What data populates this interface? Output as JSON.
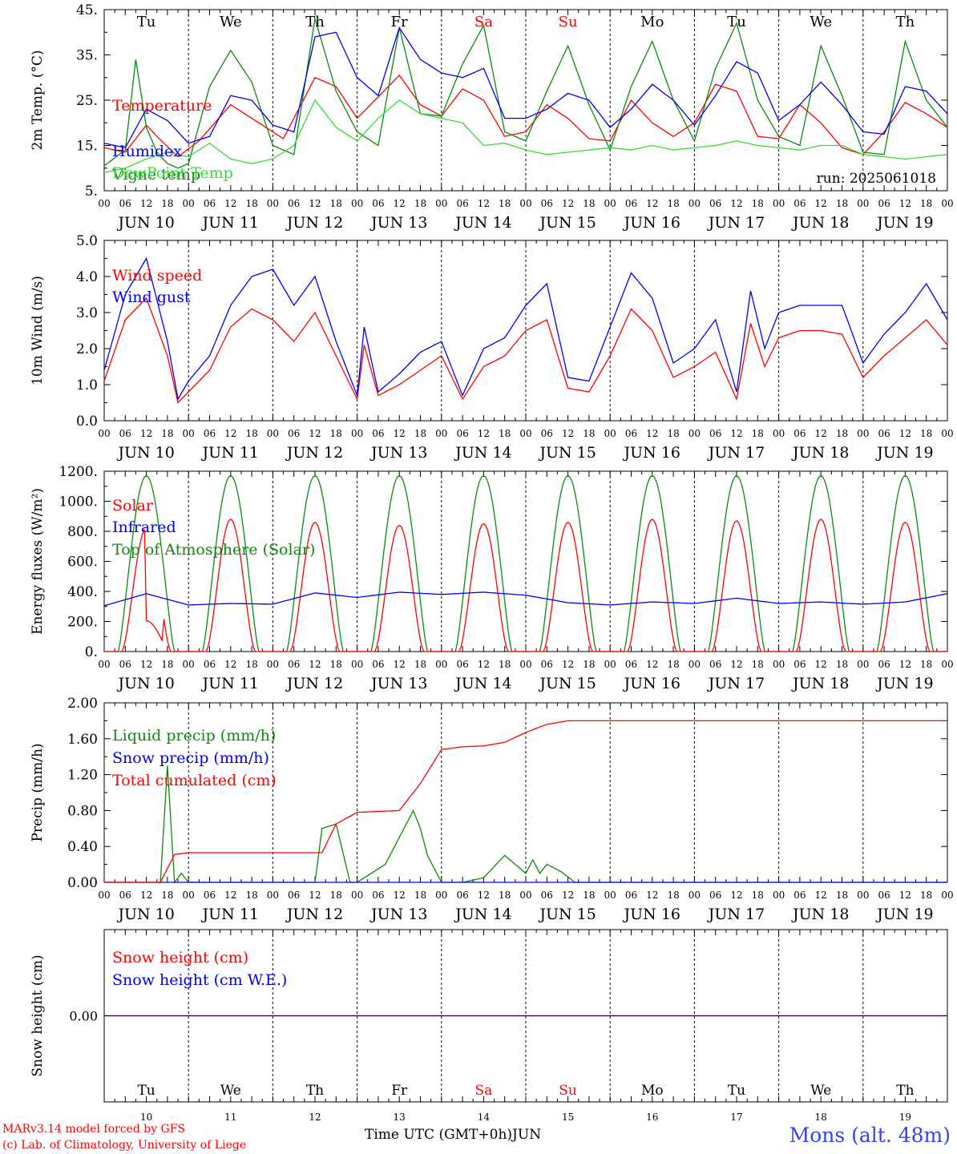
{
  "days": [
    "10",
    "11",
    "12",
    "13",
    "14",
    "15",
    "16",
    "17",
    "18",
    "19"
  ],
  "month_label": "JUN",
  "weekdays": [
    "Tu",
    "We",
    "Th",
    "Fr",
    "Sa",
    "Su",
    "Mo",
    "Tu",
    "We",
    "Th"
  ],
  "weekday_colors": [
    "#000000",
    "#000000",
    "#000000",
    "#000000",
    "#ff0000",
    "#ff0000",
    "#000000",
    "#000000",
    "#000000",
    "#000000"
  ],
  "hour_ticks": [
    "00",
    "06",
    "12",
    "18"
  ],
  "run_label": "run: 2025061018",
  "footer": {
    "credit_line1": "MARv3.14 model forced by GFS",
    "credit_line2": "(c) Lab. of Climatology, University of Liege",
    "axis_title": "Time UTC (GMT+0h)",
    "axis_month": "JUN",
    "station": "Mons (alt. 48m)"
  },
  "colors": {
    "red": "#ff0000",
    "green": "#0a8a0a",
    "blue": "#0000ee",
    "lightgreen": "#33dd33"
  },
  "chart_data": [
    {
      "type": "line",
      "id": "temperature",
      "ylabel": "2m Temp. (°C)",
      "ylim": [
        5,
        45
      ],
      "ytick_labels": [
        "5.",
        "15.",
        "25.",
        "35.",
        "45."
      ],
      "x_unit": "hours since JUN 10 00 UTC",
      "x_range": [
        0,
        240
      ],
      "series": [
        {
          "name": "Temperature",
          "color": "#ff0000",
          "x": [
            0,
            6,
            12,
            15,
            21,
            27,
            36,
            42,
            51,
            60,
            66,
            72,
            84,
            90,
            96,
            102,
            108,
            114,
            120,
            126,
            132,
            138,
            144,
            150,
            156,
            162,
            168,
            174,
            180,
            186,
            192,
            198,
            204,
            210,
            216,
            222,
            228,
            234,
            240
          ],
          "values": [
            14.5,
            13.5,
            19.5,
            17,
            12.5,
            16,
            24,
            21,
            16.5,
            30,
            28,
            21,
            30.5,
            24,
            21.5,
            27.5,
            25,
            17,
            18,
            24,
            21,
            16.5,
            16,
            25,
            20,
            17,
            20,
            28.5,
            27,
            17,
            16.5,
            24,
            20,
            14.5,
            13,
            18,
            24.5,
            22,
            19
          ]
        },
        {
          "name": "Vigne temp",
          "color": "#0a8a0a",
          "x": [
            0,
            6,
            9,
            12,
            15,
            18,
            21,
            24,
            30,
            36,
            42,
            48,
            54,
            60,
            66,
            72,
            78,
            84,
            90,
            96,
            102,
            108,
            114,
            120,
            126,
            132,
            138,
            144,
            150,
            156,
            162,
            168,
            174,
            180,
            186,
            192,
            198,
            204,
            210,
            216,
            222,
            228,
            234,
            240
          ],
          "values": [
            10.5,
            14,
            34,
            19,
            13.5,
            11,
            10,
            11,
            28,
            36,
            29,
            15,
            13,
            43,
            27,
            18,
            15,
            41,
            22,
            21.5,
            33,
            41.5,
            18,
            16,
            27,
            37,
            24,
            14,
            28,
            38,
            25,
            16,
            32,
            42,
            25,
            17,
            15,
            37,
            26,
            13.5,
            13,
            38,
            25,
            19
          ]
        },
        {
          "name": "Humidex",
          "color": "#0000ee",
          "x": [
            0,
            6,
            12,
            18,
            24,
            30,
            36,
            42,
            48,
            54,
            60,
            66,
            72,
            78,
            84,
            90,
            96,
            102,
            108,
            114,
            120,
            126,
            132,
            138,
            144,
            150,
            156,
            162,
            168,
            174,
            180,
            186,
            192,
            198,
            204,
            210,
            216,
            222,
            228,
            234,
            240
          ],
          "values": [
            15.5,
            14.5,
            23,
            20.5,
            15.5,
            17,
            26,
            25,
            19.5,
            18,
            39,
            40,
            30,
            26,
            41,
            34,
            31,
            30,
            32,
            21,
            21,
            23,
            26.5,
            25,
            19,
            23,
            28.5,
            25,
            19.5,
            26,
            33.5,
            31,
            20.5,
            24,
            29,
            24,
            18,
            17.5,
            28,
            27,
            22
          ]
        },
        {
          "name": "DewPoint Temp",
          "color": "#33dd33",
          "x": [
            0,
            6,
            12,
            18,
            24,
            30,
            36,
            42,
            48,
            54,
            60,
            66,
            72,
            78,
            84,
            90,
            96,
            102,
            108,
            114,
            120,
            126,
            132,
            138,
            144,
            150,
            156,
            162,
            168,
            174,
            180,
            186,
            192,
            198,
            204,
            210,
            216,
            222,
            228,
            234,
            240
          ],
          "values": [
            9,
            10,
            12,
            13.5,
            12.5,
            15.5,
            12,
            11,
            12,
            15,
            25,
            19,
            16,
            21,
            25,
            22,
            21,
            20,
            15,
            15.5,
            14,
            13,
            13.5,
            14,
            14.5,
            14,
            15,
            14,
            14.5,
            15,
            16,
            15,
            14.5,
            14,
            15,
            15,
            13,
            12.5,
            12,
            12.5,
            13
          ]
        }
      ]
    },
    {
      "type": "line",
      "id": "wind",
      "ylabel": "10m Wind (m/s)",
      "ylim": [
        0,
        5
      ],
      "ytick_labels": [
        "0.0",
        "1.0",
        "2.0",
        "3.0",
        "4.0",
        "5.0"
      ],
      "x_unit": "hours since JUN 10 00 UTC",
      "x_range": [
        0,
        240
      ],
      "series": [
        {
          "name": "Wind speed",
          "color": "#ff0000",
          "x": [
            0,
            6,
            12,
            18,
            21,
            24,
            30,
            36,
            42,
            48,
            54,
            60,
            66,
            72,
            74,
            78,
            84,
            90,
            96,
            102,
            108,
            114,
            120,
            126,
            132,
            138,
            144,
            150,
            156,
            162,
            168,
            174,
            180,
            184,
            188,
            192,
            198,
            204,
            210,
            216,
            222,
            228,
            234,
            240
          ],
          "values": [
            1.1,
            2.8,
            3.4,
            1.8,
            0.5,
            0.8,
            1.4,
            2.6,
            3.1,
            2.8,
            2.2,
            3.0,
            1.8,
            0.6,
            2.1,
            0.7,
            1.0,
            1.4,
            1.8,
            0.6,
            1.5,
            1.8,
            2.5,
            2.8,
            0.9,
            0.8,
            1.8,
            3.1,
            2.5,
            1.2,
            1.5,
            1.9,
            0.6,
            2.7,
            1.5,
            2.3,
            2.5,
            2.5,
            2.4,
            1.2,
            1.8,
            2.3,
            2.8,
            2.1
          ]
        },
        {
          "name": "Wind gust",
          "color": "#0000ee",
          "x": [
            0,
            6,
            12,
            18,
            21,
            24,
            30,
            36,
            42,
            48,
            54,
            60,
            66,
            72,
            74,
            78,
            84,
            90,
            96,
            102,
            108,
            114,
            120,
            126,
            132,
            138,
            144,
            150,
            156,
            162,
            168,
            174,
            180,
            184,
            188,
            192,
            198,
            204,
            210,
            216,
            222,
            228,
            234,
            240
          ],
          "values": [
            1.4,
            3.5,
            4.5,
            2.2,
            0.6,
            1.1,
            1.8,
            3.2,
            4.0,
            4.2,
            3.2,
            4.0,
            2.2,
            0.7,
            2.6,
            0.8,
            1.3,
            1.9,
            2.2,
            0.7,
            2.0,
            2.3,
            3.2,
            3.8,
            1.2,
            1.1,
            2.6,
            4.1,
            3.4,
            1.6,
            2.0,
            2.8,
            0.8,
            3.6,
            2.0,
            3.0,
            3.2,
            3.2,
            3.2,
            1.6,
            2.4,
            3.0,
            3.8,
            2.8
          ]
        }
      ]
    },
    {
      "type": "line",
      "id": "energy",
      "ylabel": "Energy fluxes (W/m²)",
      "ylim": [
        0,
        1200
      ],
      "ytick_labels": [
        "0.",
        "200.",
        "400.",
        "600.",
        "800.",
        "1000.",
        "1200."
      ],
      "x_unit": "hours since JUN 10 00 UTC",
      "x_range": [
        0,
        240
      ],
      "series": [
        {
          "name": "Solar",
          "color": "#ff0000",
          "daily_peak": [
            820,
            880,
            860,
            840,
            850,
            860,
            880,
            870,
            880,
            860
          ]
        },
        {
          "name": "Infrared",
          "color": "#0000ee",
          "x": [
            0,
            12,
            24,
            36,
            48,
            60,
            72,
            84,
            96,
            108,
            120,
            132,
            144,
            156,
            168,
            180,
            192,
            204,
            216,
            228,
            240
          ],
          "values": [
            305,
            385,
            310,
            320,
            315,
            390,
            360,
            395,
            380,
            395,
            375,
            325,
            310,
            330,
            320,
            355,
            320,
            330,
            315,
            330,
            385
          ]
        },
        {
          "name": "Top of Atmosphere (Solar)",
          "color": "#0a8a0a",
          "daily_peak": [
            1170,
            1170,
            1170,
            1170,
            1170,
            1170,
            1170,
            1170,
            1170,
            1170
          ]
        }
      ]
    },
    {
      "type": "line",
      "id": "precip",
      "ylabel": "Precip (mm/h)",
      "ylim": [
        0,
        2
      ],
      "ytick_labels": [
        "0.00",
        "0.40",
        "0.80",
        "1.20",
        "1.60",
        "2.00"
      ],
      "x_unit": "hours since JUN 10 00 UTC",
      "x_range": [
        0,
        240
      ],
      "series": [
        {
          "name": "Liquid precip (mm/h)",
          "color": "#0a8a0a",
          "x": [
            0,
            16,
            18,
            20,
            22,
            24,
            60,
            62,
            66,
            70,
            72,
            80,
            84,
            88,
            90,
            92,
            96,
            102,
            108,
            114,
            117,
            120,
            122,
            124,
            126,
            130,
            134,
            240
          ],
          "values": [
            0,
            0,
            1.3,
            0,
            0.1,
            0,
            0,
            0.6,
            0.65,
            0,
            0,
            0.2,
            0.5,
            0.8,
            0.6,
            0.3,
            0,
            0,
            0.05,
            0.3,
            0.2,
            0.1,
            0.25,
            0.1,
            0.2,
            0.12,
            0,
            0
          ]
        },
        {
          "name": "Snow precip (mm/h)",
          "color": "#0000ee",
          "x": [
            0,
            240
          ],
          "values": [
            0,
            0
          ]
        },
        {
          "name": "Total cumulated (cm)",
          "color": "#ff0000",
          "x": [
            0,
            16,
            20,
            24,
            36,
            48,
            62,
            66,
            72,
            84,
            90,
            96,
            102,
            108,
            114,
            120,
            126,
            132,
            240
          ],
          "values": [
            0,
            0,
            0.31,
            0.33,
            0.33,
            0.33,
            0.33,
            0.65,
            0.78,
            0.8,
            1.1,
            1.48,
            1.51,
            1.52,
            1.56,
            1.67,
            1.76,
            1.8,
            1.8
          ]
        }
      ]
    },
    {
      "type": "line",
      "id": "snow",
      "ylabel": "Snow height (cm)",
      "ylim": [
        -1,
        1
      ],
      "ytick_labels": [
        "0.00"
      ],
      "x_unit": "hours since JUN 10 00 UTC",
      "x_range": [
        0,
        240
      ],
      "series": [
        {
          "name": "Snow height (cm)",
          "color": "#ff0000",
          "x": [
            0,
            240
          ],
          "values": [
            0,
            0
          ]
        },
        {
          "name": "Snow height (cm W.E.)",
          "color": "#0000ee",
          "x": [
            0,
            240
          ],
          "values": [
            0,
            0
          ]
        }
      ]
    }
  ]
}
